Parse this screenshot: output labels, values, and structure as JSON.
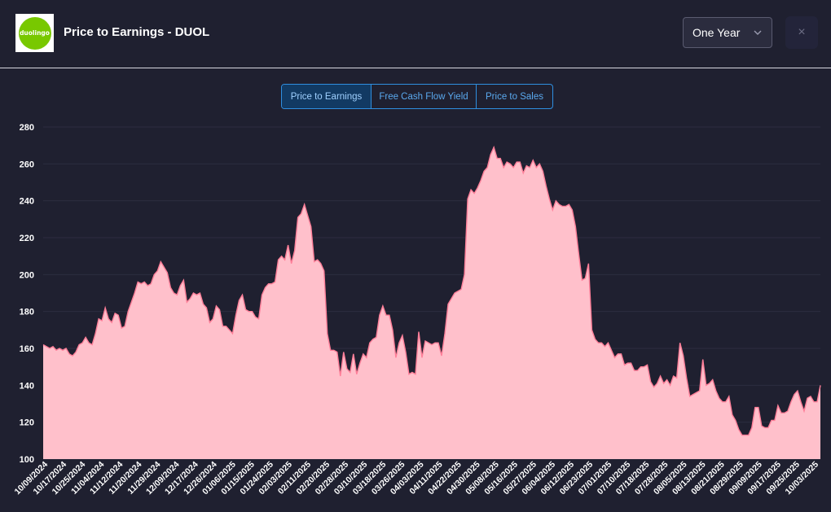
{
  "header": {
    "logo_text": "duolingo",
    "title": "Price to Earnings - DUOL",
    "period_select": "One Year",
    "close_label": "×"
  },
  "tabs": [
    {
      "label": "Price to Earnings",
      "active": true
    },
    {
      "label": "Free Cash Flow Yield",
      "active": false
    },
    {
      "label": "Price to Sales",
      "active": false
    }
  ],
  "colors": {
    "background": "#1f2030",
    "area_fill": "#ffc0cb",
    "area_line": "#ff7f99",
    "accent": "#2f8fe0"
  },
  "chart_data": {
    "type": "area",
    "title": "",
    "xlabel": "",
    "ylabel": "",
    "ylim": [
      100,
      280
    ],
    "yticks": [
      100,
      120,
      140,
      160,
      180,
      200,
      220,
      240,
      260,
      280
    ],
    "xtick_labels": [
      "10/09/2024",
      "10/17/2024",
      "10/25/2024",
      "11/04/2024",
      "11/12/2024",
      "11/20/2024",
      "11/29/2024",
      "12/09/2024",
      "12/17/2024",
      "12/26/2024",
      "01/06/2025",
      "01/15/2025",
      "01/24/2025",
      "02/03/2025",
      "02/11/2025",
      "02/20/2025",
      "02/28/2025",
      "03/10/2025",
      "03/18/2025",
      "03/26/2025",
      "04/03/2025",
      "04/11/2025",
      "04/22/2025",
      "04/30/2025",
      "05/08/2025",
      "05/16/2025",
      "05/27/2025",
      "06/04/2025",
      "06/12/2025",
      "06/23/2025",
      "07/01/2025",
      "07/10/2025",
      "07/18/2025",
      "07/28/2025",
      "08/05/2025",
      "08/13/2025",
      "08/21/2025",
      "08/29/2025",
      "09/09/2025",
      "09/17/2025",
      "09/25/2025",
      "10/03/2025"
    ],
    "grid": true,
    "series": [
      {
        "values": [
          162,
          161,
          160,
          161,
          159,
          160,
          159,
          160,
          157,
          156,
          158,
          162,
          163,
          166,
          163,
          162,
          168,
          176,
          175,
          182,
          176,
          174,
          179,
          178,
          171,
          172,
          180,
          185,
          190,
          196,
          195,
          196,
          194,
          195,
          200,
          202,
          207,
          204,
          201,
          193,
          190,
          189,
          194,
          197,
          185,
          187,
          190,
          189,
          190,
          184,
          182,
          174,
          176,
          183,
          181,
          172,
          172,
          170,
          168,
          178,
          186,
          189,
          181,
          180,
          180,
          177,
          176,
          189,
          193,
          195,
          195,
          196,
          208,
          210,
          208,
          216,
          206,
          213,
          231,
          233,
          238,
          232,
          226,
          207,
          208,
          206,
          202,
          168,
          159,
          159,
          158,
          145,
          158,
          149,
          147,
          157,
          146,
          152,
          157,
          155,
          163,
          165,
          166,
          178,
          183,
          178,
          178,
          170,
          155,
          163,
          167,
          158,
          146,
          147,
          146,
          169,
          155,
          164,
          163,
          162,
          163,
          163,
          156,
          168,
          184,
          187,
          190,
          191,
          192,
          200,
          241,
          246,
          244,
          247,
          251,
          256,
          258,
          265,
          269,
          263,
          263,
          258,
          261,
          260,
          258,
          261,
          261,
          255,
          259,
          258,
          262,
          258,
          260,
          256,
          248,
          241,
          235,
          240,
          238,
          237,
          237,
          238,
          235,
          226,
          211,
          197,
          198,
          206,
          170,
          165,
          163,
          163,
          161,
          163,
          159,
          155,
          157,
          157,
          151,
          152,
          152,
          148,
          148,
          150,
          150,
          151,
          142,
          139,
          141,
          145,
          141,
          143,
          140,
          145,
          144,
          163,
          156,
          144,
          134,
          135,
          136,
          137,
          154,
          140,
          141,
          143,
          137,
          133,
          131,
          131,
          134,
          124,
          121,
          116,
          113,
          113,
          113,
          117,
          128,
          128,
          118,
          117,
          117,
          121,
          121,
          129,
          125,
          125,
          126,
          131,
          135,
          137,
          131,
          126,
          133,
          134,
          131,
          131,
          140
        ]
      }
    ]
  }
}
